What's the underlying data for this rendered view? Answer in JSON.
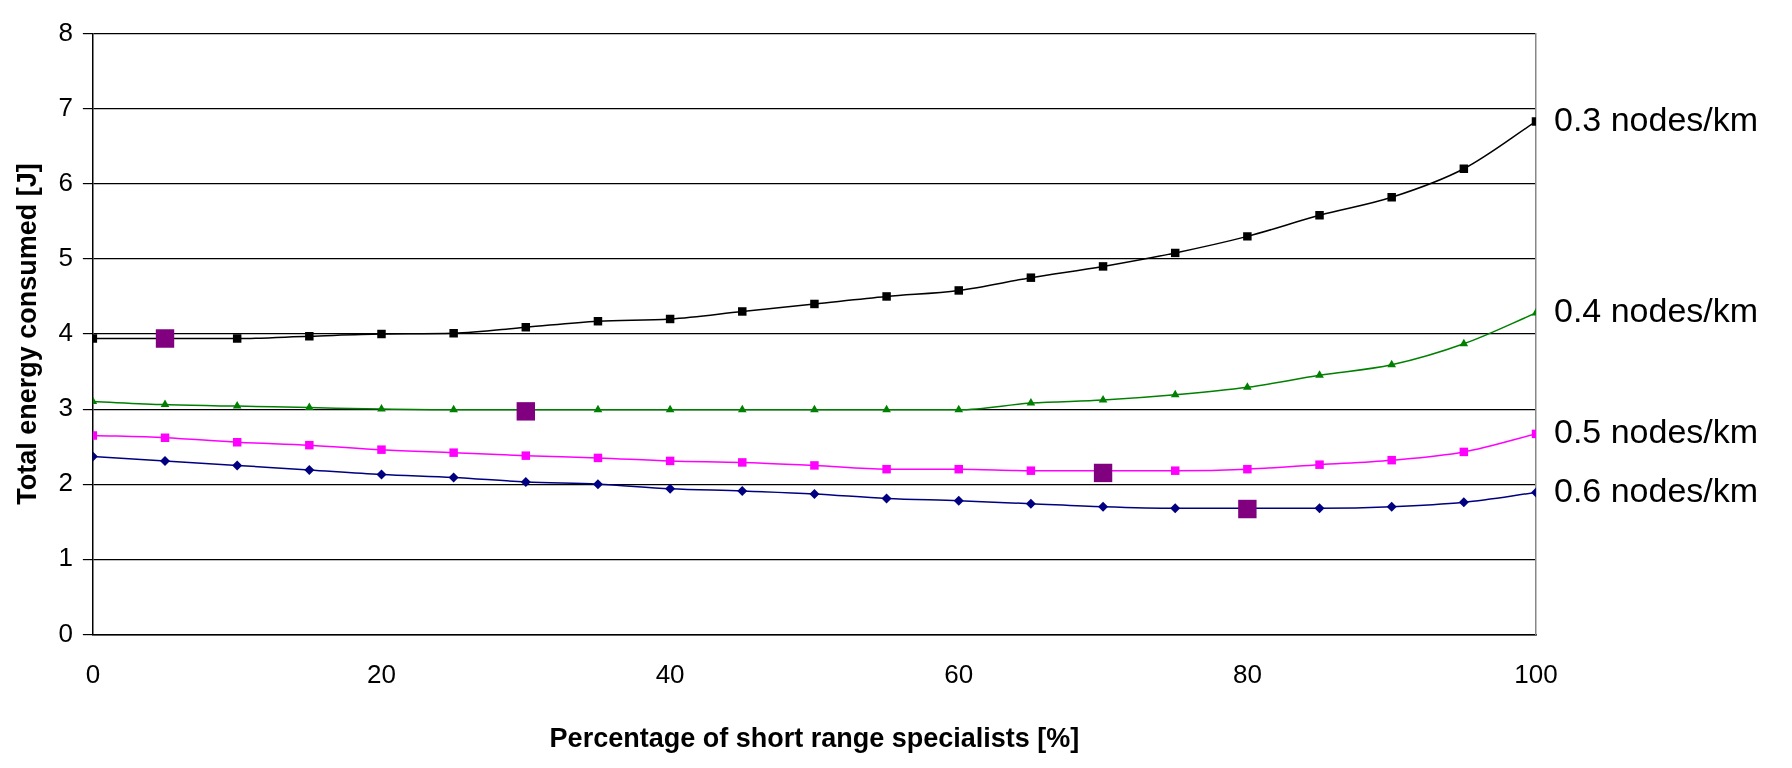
{
  "chart_data": {
    "type": "line",
    "xlabel": "Percentage of short range specialists [%]",
    "ylabel": "Total energy consumed [J]",
    "xlim": [
      0,
      100
    ],
    "xticks": [
      0,
      20,
      40,
      60,
      80,
      100
    ],
    "ylim": [
      0,
      8
    ],
    "yticks": [
      0,
      1,
      2,
      3,
      4,
      5,
      6,
      7,
      8
    ],
    "grid": "y",
    "legend": false,
    "x": [
      0,
      5,
      10,
      15,
      20,
      25,
      30,
      35,
      40,
      45,
      50,
      55,
      60,
      65,
      70,
      75,
      80,
      85,
      90,
      95,
      100
    ],
    "series": [
      {
        "name": "0.3 nodes/km",
        "color": "#000000",
        "marker": "square",
        "values": [
          3.94,
          null,
          3.94,
          3.97,
          4.0,
          4.01,
          4.09,
          4.17,
          4.2,
          4.3,
          4.4,
          4.5,
          4.58,
          4.75,
          4.9,
          5.08,
          5.3,
          5.58,
          5.82,
          6.2,
          6.83
        ]
      },
      {
        "name": "0.4 nodes/km",
        "color": "#008000",
        "marker": "triangle",
        "values": [
          3.1,
          3.06,
          3.04,
          3.02,
          3.0,
          2.99,
          null,
          2.99,
          2.99,
          2.99,
          2.99,
          2.99,
          2.99,
          3.08,
          3.12,
          3.19,
          3.29,
          3.45,
          3.59,
          3.87,
          4.28
        ]
      },
      {
        "name": "0.5 nodes/km",
        "color": "#ff00ff",
        "marker": "square",
        "values": [
          2.65,
          2.62,
          2.56,
          2.52,
          2.46,
          2.42,
          2.38,
          2.35,
          2.31,
          2.29,
          2.25,
          2.2,
          2.2,
          2.18,
          null,
          2.18,
          2.2,
          2.26,
          2.32,
          2.43,
          2.67
        ]
      },
      {
        "name": "0.6 nodes/km",
        "color": "#000080",
        "marker": "diamond",
        "values": [
          2.37,
          2.31,
          2.25,
          2.19,
          2.13,
          2.09,
          2.03,
          2.0,
          1.94,
          1.91,
          1.87,
          1.81,
          1.78,
          1.74,
          1.7,
          1.68,
          null,
          1.68,
          1.7,
          1.76,
          1.89
        ]
      },
      {
        "type": "scatter",
        "color": "#800080",
        "marker": "square",
        "x": [
          5,
          30,
          70,
          80
        ],
        "values": [
          3.94,
          2.97,
          2.15,
          1.67
        ]
      }
    ]
  }
}
